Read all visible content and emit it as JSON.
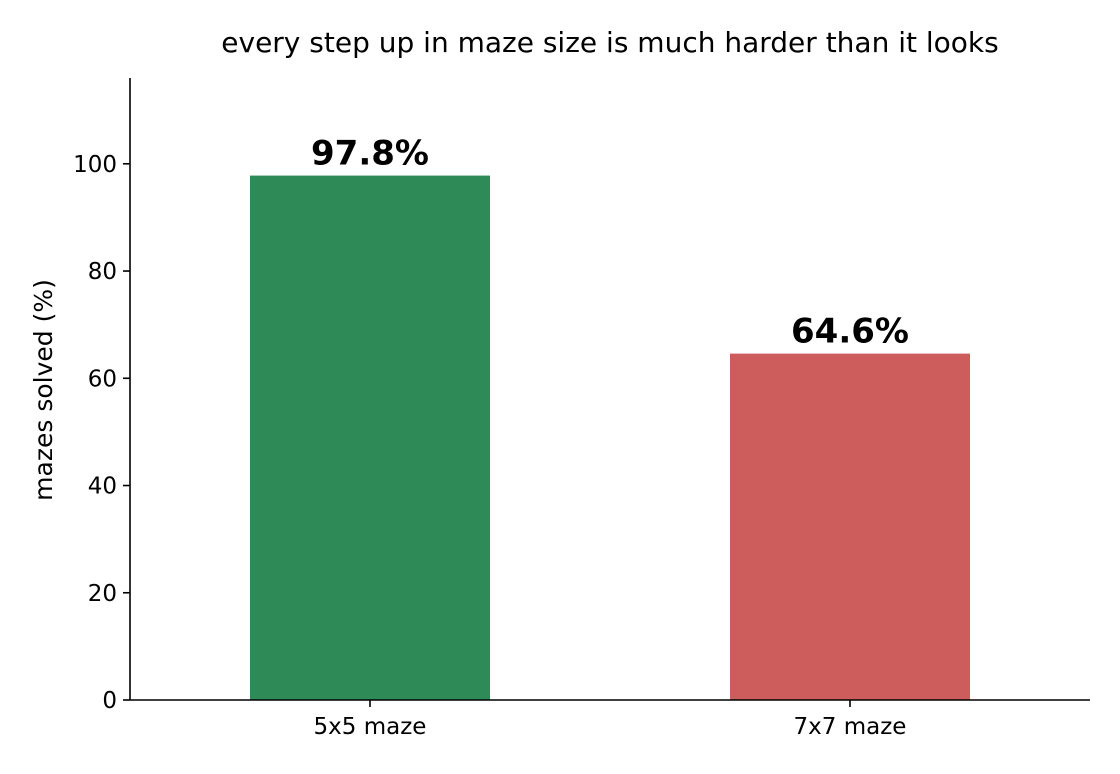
{
  "chart_data": {
    "type": "bar",
    "title": "every step up in maze size is much harder than it looks",
    "xlabel": "",
    "ylabel": "mazes solved (%)",
    "categories": [
      "5x5 maze",
      "7x7 maze"
    ],
    "values": [
      97.8,
      64.6
    ],
    "data_labels": [
      "97.8%",
      "64.6%"
    ],
    "colors": [
      "#2e8b57",
      "#cd5c5c"
    ],
    "ylim": [
      0,
      116
    ],
    "yticks": [
      0,
      20,
      40,
      60,
      80,
      100
    ],
    "grid": false,
    "legend": "none"
  }
}
